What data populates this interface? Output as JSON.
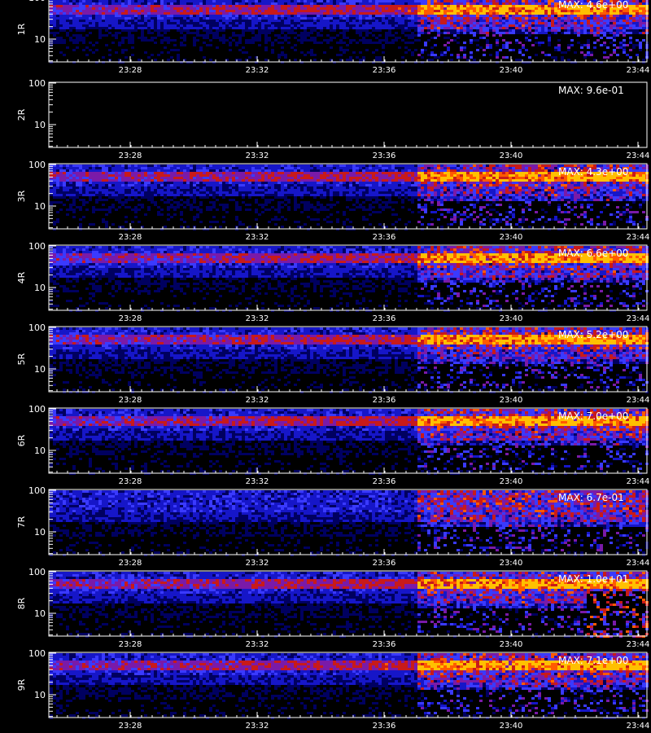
{
  "chart_data": {
    "type": "heatmap",
    "x_ticks": [
      "23:28",
      "23:32",
      "23:36",
      "23:40",
      "23:44"
    ],
    "y_ticks": [
      "100",
      "10"
    ],
    "y_scale": "log",
    "colormap": [
      "#000000",
      "#000060",
      "#1616c8",
      "#3a3aff",
      "#7a1aa8",
      "#c81a1a",
      "#ff5a00",
      "#ffc000",
      "#ffffff"
    ],
    "panels": [
      {
        "label": "1R",
        "max_text": "MAX: 4.6e+00",
        "max": 4.6
      },
      {
        "label": "2R",
        "max_text": "MAX: 9.6e-01",
        "max": 0.96
      },
      {
        "label": "3R",
        "max_text": "MAX: 4.3e+00",
        "max": 4.3
      },
      {
        "label": "4R",
        "max_text": "MAX: 6.6e+00",
        "max": 6.6
      },
      {
        "label": "5R",
        "max_text": "MAX: 5.2e+00",
        "max": 5.2
      },
      {
        "label": "6R",
        "max_text": "MAX: 7.0e+00",
        "max": 7.0
      },
      {
        "label": "7R",
        "max_text": "MAX: 6.7e-01",
        "max": 0.67
      },
      {
        "label": "8R",
        "max_text": "MAX: 1.0e+01",
        "max": 10.0
      },
      {
        "label": "9R",
        "max_text": "MAX: 7.1e+00",
        "max": 7.1
      }
    ]
  }
}
